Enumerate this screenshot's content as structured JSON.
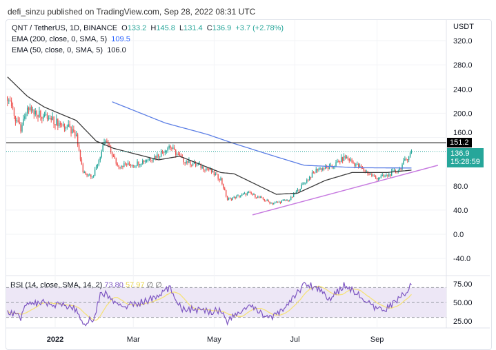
{
  "header": {
    "published": "defi_sinzu published on TradingView.com, Sep 28, 2022 08:31 UTC"
  },
  "legend": {
    "symbol": "QNT / TetherUS, 1D, BINANCE",
    "o_label": "O",
    "o": "133.2",
    "h_label": "H",
    "h": "145.8",
    "l_label": "L",
    "l": "131.4",
    "c_label": "C",
    "c": "136.9",
    "change": "+3.7 (+2.78%)",
    "ema200_label": "EMA (200, close, 0, SMA, 5)",
    "ema200_value": "109.5",
    "ema50_label": "EMA (50, close, 0, SMA, 5)",
    "ema50_value": "106.0"
  },
  "price_axis": {
    "currency": "USDT",
    "ticks": [
      "320.0",
      "280.0",
      "240.0",
      "200.0",
      "160.0",
      "80.0",
      "40.0",
      "0.0",
      "-40.0"
    ]
  },
  "tags": {
    "level": "151.2",
    "last_price": "136.9",
    "countdown": "15:28:59"
  },
  "rsi": {
    "label": "RSI (14, close, SMA, 14, 2)",
    "value": "73.80",
    "sma_value": "57.97",
    "icons": "∅ ∅",
    "ticks": [
      "75.00",
      "50.00",
      "25.00"
    ]
  },
  "time_axis": [
    "2022",
    "Mar",
    "May",
    "Jul",
    "Sep"
  ],
  "colors": {
    "up": "#26a69a",
    "down": "#ef5350",
    "ema200": "#5b7ee5",
    "ema50": "#3a3a3a",
    "trendline": "#c77be0",
    "rsi": "#7e57c2",
    "rsi_sma": "#f5e27a",
    "rsi_band": "#ede7f6"
  },
  "chart_data": {
    "type": "candlestick",
    "price_range": [
      -60,
      340
    ],
    "horizontal_level": 151.2,
    "last_close": 136.9,
    "close_keypoints": [
      [
        "2021-11-26",
        228
      ],
      [
        "2021-12-06",
        170
      ],
      [
        "2021-12-11",
        210
      ],
      [
        "2021-12-24",
        195
      ],
      [
        "2022-01-11",
        176
      ],
      [
        "2022-01-17",
        160
      ],
      [
        "2022-01-22",
        102
      ],
      [
        "2022-01-30",
        97
      ],
      [
        "2022-02-04",
        130
      ],
      [
        "2022-02-08",
        154
      ],
      [
        "2022-02-17",
        114
      ],
      [
        "2022-03-02",
        116
      ],
      [
        "2022-03-20",
        131
      ],
      [
        "2022-03-28",
        146
      ],
      [
        "2022-04-07",
        123
      ],
      [
        "2022-04-26",
        108
      ],
      [
        "2022-05-06",
        91
      ],
      [
        "2022-05-11",
        57
      ],
      [
        "2022-05-27",
        68
      ],
      [
        "2022-06-14",
        51
      ],
      [
        "2022-06-27",
        57
      ],
      [
        "2022-07-08",
        85
      ],
      [
        "2022-07-18",
        108
      ],
      [
        "2022-07-28",
        110
      ],
      [
        "2022-08-08",
        128
      ],
      [
        "2022-08-18",
        112
      ],
      [
        "2022-08-31",
        93
      ],
      [
        "2022-09-08",
        96
      ],
      [
        "2022-09-18",
        108
      ],
      [
        "2022-09-27",
        136.9
      ]
    ],
    "ema50": [
      [
        "2021-11-26",
        260
      ],
      [
        "2021-12-11",
        228
      ],
      [
        "2021-12-24",
        210
      ],
      [
        "2022-01-17",
        188
      ],
      [
        "2022-02-01",
        154
      ],
      [
        "2022-02-14",
        142
      ],
      [
        "2022-03-20",
        123
      ],
      [
        "2022-04-05",
        129
      ],
      [
        "2022-05-06",
        102
      ],
      [
        "2022-05-16",
        100
      ],
      [
        "2022-06-17",
        66
      ],
      [
        "2022-07-03",
        68
      ],
      [
        "2022-07-24",
        89
      ],
      [
        "2022-08-13",
        102
      ],
      [
        "2022-09-08",
        102
      ],
      [
        "2022-09-27",
        106
      ]
    ],
    "ema200": [
      [
        "2022-02-13",
        219
      ],
      [
        "2022-03-25",
        184
      ],
      [
        "2022-04-26",
        165
      ],
      [
        "2022-05-16",
        150
      ],
      [
        "2022-06-17",
        128
      ],
      [
        "2022-07-08",
        114
      ],
      [
        "2022-08-18",
        110
      ],
      [
        "2022-09-27",
        109.5
      ]
    ],
    "trendline": [
      [
        "2022-05-30",
        32
      ],
      [
        "2022-10-17",
        114
      ]
    ],
    "rsi_keypoints": [
      [
        "2021-11-26",
        38
      ],
      [
        "2021-12-06",
        30
      ],
      [
        "2021-12-11",
        48
      ],
      [
        "2021-12-24",
        50
      ],
      [
        "2022-01-11",
        45
      ],
      [
        "2022-01-17",
        40
      ],
      [
        "2022-01-22",
        22
      ],
      [
        "2022-01-30",
        28
      ],
      [
        "2022-02-04",
        60
      ],
      [
        "2022-02-08",
        62
      ],
      [
        "2022-02-17",
        45
      ],
      [
        "2022-03-02",
        47
      ],
      [
        "2022-03-20",
        58
      ],
      [
        "2022-03-28",
        70
      ],
      [
        "2022-04-07",
        42
      ],
      [
        "2022-04-26",
        38
      ],
      [
        "2022-05-06",
        40
      ],
      [
        "2022-05-11",
        25
      ],
      [
        "2022-05-27",
        45
      ],
      [
        "2022-06-14",
        28
      ],
      [
        "2022-06-27",
        50
      ],
      [
        "2022-07-08",
        75
      ],
      [
        "2022-07-18",
        70
      ],
      [
        "2022-07-28",
        55
      ],
      [
        "2022-08-08",
        74
      ],
      [
        "2022-08-18",
        60
      ],
      [
        "2022-08-31",
        40
      ],
      [
        "2022-09-08",
        42
      ],
      [
        "2022-09-18",
        55
      ],
      [
        "2022-09-27",
        73.8
      ]
    ],
    "rsi_levels": [
      70,
      50,
      30
    ]
  }
}
